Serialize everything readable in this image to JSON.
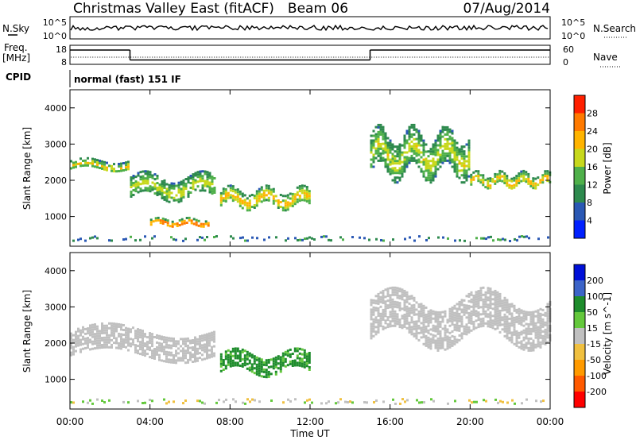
{
  "header": {
    "title": "Christmas Valley East (fitACF)",
    "beam": "Beam 06",
    "date": "07/Aug/2014"
  },
  "noise_panel": {
    "left_label": "N.Sky",
    "right_label": "N.Search",
    "left_ticks": [
      "10^5",
      "10^0"
    ],
    "right_ticks": [
      "10^5",
      "10^0"
    ]
  },
  "freq_panel": {
    "left_label_1": "Freq.",
    "left_label_2": "[MHz]",
    "right_label": "Nave",
    "left_ticks": [
      "18",
      "8"
    ],
    "right_ticks": [
      "60",
      "0"
    ]
  },
  "cpid_panel": {
    "label": "CPID",
    "mode": "normal (fast) 151 IF"
  },
  "colors": {
    "power": [
      "#0020ff",
      "#2a58b4",
      "#2e8a4e",
      "#4fb04a",
      "#c7d81c",
      "#ffb400",
      "#ff7a00",
      "#ff2000"
    ],
    "velocity": [
      "#0010d8",
      "#3c64c8",
      "#1e8c2c",
      "#64c83c",
      "#c0c0c0",
      "#f0c040",
      "#ff9a00",
      "#ff5a00",
      "#ff0000"
    ]
  },
  "chart_data": [
    {
      "type": "heatmap",
      "title": "Power",
      "ylabel": "Slant Range [km]",
      "ylim": [
        180,
        4500
      ],
      "y_ticks": [
        1000,
        2000,
        3000,
        4000
      ],
      "x_ticks": [
        "00:00",
        "04:00",
        "08:00",
        "12:00",
        "16:00",
        "20:00",
        "00:00"
      ],
      "xlim_hours": [
        0,
        24
      ],
      "colorbar": {
        "label": "Power [dB]",
        "ticks": [
          "4",
          "8",
          "12",
          "16",
          "20",
          "24",
          "28"
        ],
        "range": [
          0,
          30
        ]
      },
      "features": [
        {
          "name": "dawn echo band",
          "start_hour": 0.0,
          "end_hour": 3.0,
          "range_start_km": 2200,
          "range_end_km": 2650,
          "power_db": 20
        },
        {
          "name": "morning echo band",
          "start_hour": 3.0,
          "end_hour": 7.3,
          "range_start_km": 1350,
          "range_end_km": 2300,
          "power_db": 18
        },
        {
          "name": "low range patch",
          "start_hour": 4.0,
          "end_hour": 7.0,
          "range_start_km": 700,
          "range_end_km": 1000,
          "power_db": 28
        },
        {
          "name": "midday band",
          "start_hour": 7.5,
          "end_hour": 12.0,
          "range_start_km": 1100,
          "range_end_km": 1900,
          "power_db": 22
        },
        {
          "name": "afternoon arcs",
          "start_hour": 15.0,
          "end_hour": 20.0,
          "range_start_km": 1900,
          "range_end_km": 3600,
          "power_db": 18
        },
        {
          "name": "evening band",
          "start_hour": 20.0,
          "end_hour": 24.0,
          "range_start_km": 1700,
          "range_end_km": 2300,
          "power_db": 22
        }
      ]
    },
    {
      "type": "heatmap",
      "title": "Velocity",
      "ylabel": "Slant Range [km]",
      "xlabel": "Time UT",
      "ylim": [
        180,
        4500
      ],
      "y_ticks": [
        1000,
        2000,
        3000,
        4000
      ],
      "x_ticks": [
        "00:00",
        "04:00",
        "08:00",
        "12:00",
        "16:00",
        "20:00",
        "00:00"
      ],
      "xlim_hours": [
        0,
        24
      ],
      "colorbar": {
        "label": "Velocity [m s^-1]",
        "ticks": [
          "200",
          "100",
          "50",
          "15",
          "-15",
          "-50",
          "-100",
          "-200"
        ],
        "range": [
          -250,
          250
        ]
      },
      "features": [
        {
          "name": "ground scatter band",
          "start_hour": 0.0,
          "end_hour": 7.3,
          "range_start_km": 1400,
          "range_end_km": 2600,
          "velocity": 0
        },
        {
          "name": "positive velocity band",
          "start_hour": 7.5,
          "end_hour": 12.0,
          "range_start_km": 1000,
          "range_end_km": 1900,
          "velocity": 60
        },
        {
          "name": "afternoon ground scatter",
          "start_hour": 15.0,
          "end_hour": 24.0,
          "range_start_km": 1700,
          "range_end_km": 3600,
          "velocity": 0
        }
      ]
    }
  ]
}
